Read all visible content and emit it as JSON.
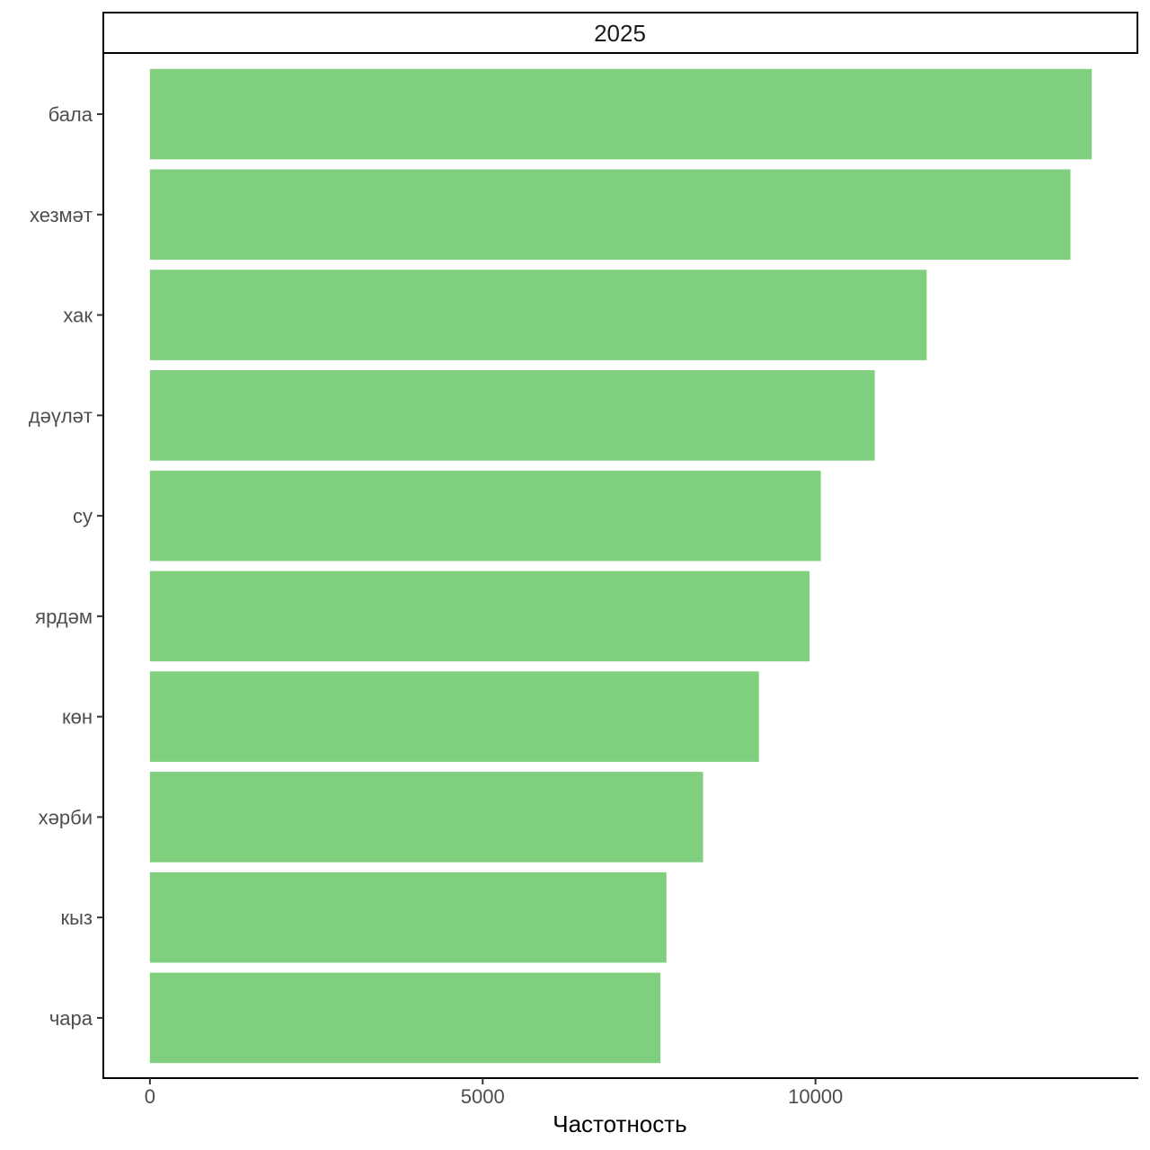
{
  "chart_data": {
    "type": "bar",
    "orientation": "horizontal",
    "facet_label": "2025",
    "categories": [
      "бала",
      "хезмәт",
      "хак",
      "дәүләт",
      "су",
      "ярдәм",
      "көн",
      "хәрби",
      "кыз",
      "чара"
    ],
    "values": [
      14150,
      13830,
      11670,
      10890,
      10080,
      9910,
      9150,
      8310,
      7760,
      7670
    ],
    "xlabel": "Частотность",
    "ylabel": "",
    "xlim": [
      -700,
      14850
    ],
    "x_ticks": [
      0,
      5000,
      10000
    ],
    "x_tick_labels": [
      "0",
      "5000",
      "10000"
    ],
    "bar_color": "#7FCF7F",
    "grid": false,
    "legend": "none"
  }
}
